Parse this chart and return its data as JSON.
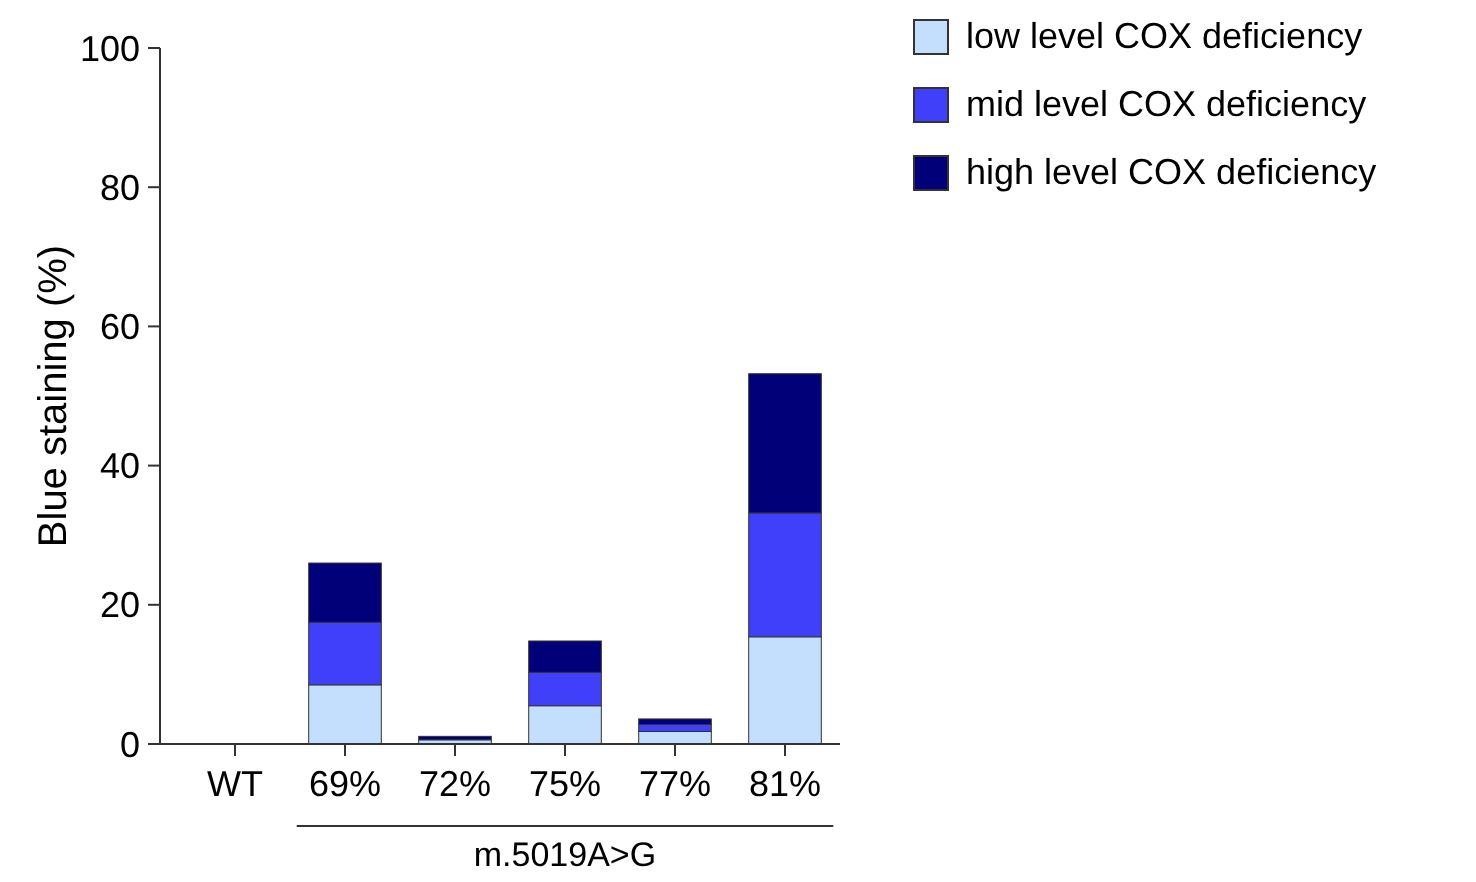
{
  "chart_data": {
    "type": "bar",
    "stacked": true,
    "ylabel": "Blue staining (%)",
    "categories": [
      "WT",
      "69%",
      "72%",
      "75%",
      "77%",
      "81%"
    ],
    "series": [
      {
        "name": "low level COX deficiency",
        "color": "#c4dffd",
        "values": [
          0,
          8.5,
          0.6,
          5.5,
          1.8,
          15.4
        ]
      },
      {
        "name": "mid level COX deficiency",
        "color": "#4040fb",
        "values": [
          0,
          9.0,
          null,
          4.8,
          1.0,
          17.8
        ]
      },
      {
        "name": "high level COX deficiency",
        "color": "#020079",
        "values": [
          0,
          8.5,
          0.5,
          4.5,
          0.8,
          20.0
        ]
      }
    ],
    "ylim": [
      0,
      100
    ],
    "yticks": [
      0,
      20,
      40,
      60,
      80,
      100
    ],
    "grid": false,
    "legend": "top right",
    "annotations": [
      "m.5019A>G"
    ]
  }
}
